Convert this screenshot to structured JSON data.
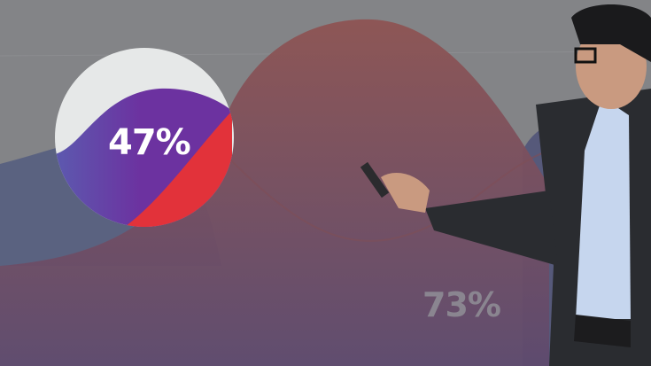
{
  "scene": {
    "description_labels": {
      "left_percentage": "47%",
      "right_percentage": "73%"
    },
    "colors": {
      "background": "#838487",
      "mountain": "#8c5554",
      "blue_wave": "#5a6280",
      "purple": "#6a32a0",
      "red": "#e2323a",
      "pie_white": "#e6e8e8",
      "suit": "#2a2c30",
      "shirt": "#c6d6ee"
    }
  }
}
